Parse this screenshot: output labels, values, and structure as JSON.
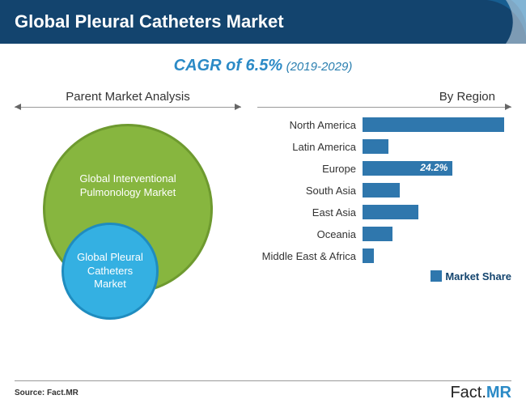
{
  "header": {
    "title": "Global Pleural Catheters Market"
  },
  "subtitle": {
    "cagr_text": "CAGR of 6.5%",
    "period": "(2019-2029)",
    "color": "#2b8ac6"
  },
  "left_section": {
    "title": "Parent Market Analysis",
    "outer_circle": {
      "label": "Global Interventional Pulmonology Market",
      "color": "#87b63f",
      "border": "#6e9a2f"
    },
    "inner_circle": {
      "label": "Global Pleural Catheters Market",
      "color": "#34b0e2",
      "border": "#1f8cbf"
    }
  },
  "right_section": {
    "title": "By Region",
    "bar_color": "#2f77ad",
    "max_value": 40,
    "bars": [
      {
        "label": "North America",
        "value": 38,
        "display": ""
      },
      {
        "label": "Latin America",
        "value": 7,
        "display": ""
      },
      {
        "label": "Europe",
        "value": 24.2,
        "display": "24.2%"
      },
      {
        "label": "South Asia",
        "value": 10,
        "display": ""
      },
      {
        "label": "East Asia",
        "value": 15,
        "display": ""
      },
      {
        "label": "Oceania",
        "value": 8,
        "display": ""
      },
      {
        "label": "Middle East & Africa",
        "value": 3,
        "display": ""
      }
    ],
    "legend": "Market Share"
  },
  "footer": {
    "source": "Source: Fact.MR",
    "brand_fact": "Fact.",
    "brand_mr": "MR"
  }
}
